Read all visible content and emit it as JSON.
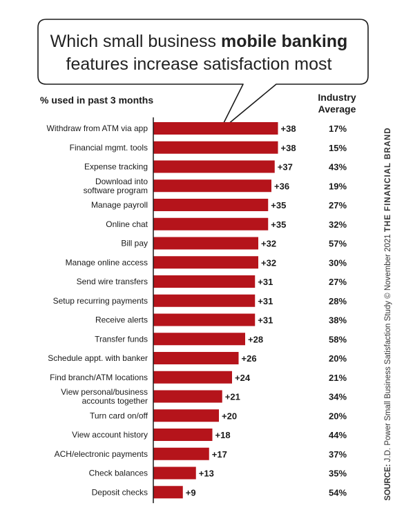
{
  "title": {
    "line1_prefix": "Which small business ",
    "line1_bold": "mobile banking",
    "line2": "features increase satisfaction most"
  },
  "subtitle": "% used in past 3 months",
  "industry_header": [
    "Industry",
    "Average"
  ],
  "source": {
    "label": "SOURCE:",
    "text": " J.D. Power Small Business Satisfaction Study © November 2021 ",
    "brand": "THE FINANCIAL BRAND"
  },
  "colors": {
    "bar": "#b5141b",
    "text": "#1a1a1a"
  },
  "chart_data": {
    "type": "bar",
    "orientation": "horizontal",
    "categories": [
      [
        "Withdraw from ATM via app"
      ],
      [
        "Financial mgmt. tools"
      ],
      [
        "Expense tracking"
      ],
      [
        "Download into",
        "software program"
      ],
      [
        "Manage payroll"
      ],
      [
        "Online chat"
      ],
      [
        "Bill pay"
      ],
      [
        "Manage online access"
      ],
      [
        "Send wire transfers"
      ],
      [
        "Setup recurring payments"
      ],
      [
        "Receive alerts"
      ],
      [
        "Transfer funds"
      ],
      [
        "Schedule appt. with banker"
      ],
      [
        "Find branch/ATM locations"
      ],
      [
        "View personal/business",
        "accounts together"
      ],
      [
        "Turn card on/off"
      ],
      [
        "View account history"
      ],
      [
        "ACH/electronic payments"
      ],
      [
        "Check balances"
      ],
      [
        "Deposit checks"
      ]
    ],
    "values": [
      38,
      38,
      37,
      36,
      35,
      35,
      32,
      32,
      31,
      31,
      31,
      28,
      26,
      24,
      21,
      20,
      18,
      17,
      13,
      9
    ],
    "value_labels": [
      "+38",
      "+38",
      "+37",
      "+36",
      "+35",
      "+35",
      "+32",
      "+32",
      "+31",
      "+31",
      "+31",
      "+28",
      "+26",
      "+24",
      "+21",
      "+20",
      "+18",
      "+17",
      "+13",
      "+9"
    ],
    "industry_average": [
      "17%",
      "15%",
      "43%",
      "19%",
      "27%",
      "32%",
      "57%",
      "30%",
      "27%",
      "28%",
      "38%",
      "58%",
      "20%",
      "21%",
      "34%",
      "20%",
      "44%",
      "37%",
      "35%",
      "54%"
    ]
  }
}
